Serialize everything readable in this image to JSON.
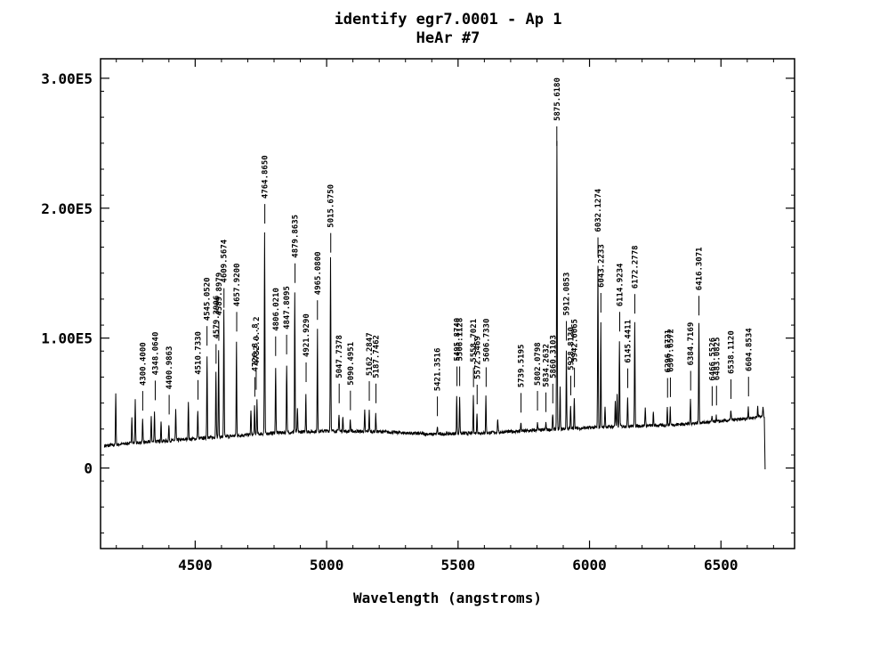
{
  "chart_data": {
    "type": "line",
    "title": "identify egr7.0001 - Ap 1",
    "subtitle": "HeAr #7",
    "xlabel": "Wavelength (angstroms)",
    "ylabel": "",
    "xlim": [
      4140,
      6780
    ],
    "ylim": [
      -62000,
      315000
    ],
    "x_ticks": [
      4500,
      5000,
      5500,
      6000,
      6500
    ],
    "x_tick_labels": [
      "4500",
      "5000",
      "5500",
      "6000",
      "6500"
    ],
    "y_ticks": [
      0,
      100000,
      200000,
      300000
    ],
    "y_tick_labels": [
      "0",
      "1.00E5",
      "2.00E5",
      "3.00E5"
    ],
    "grid": false,
    "baseline": [
      [
        4155,
        17000
      ],
      [
        4250,
        19000
      ],
      [
        4400,
        21000
      ],
      [
        4600,
        24000
      ],
      [
        4800,
        27000
      ],
      [
        5000,
        28500
      ],
      [
        5200,
        28000
      ],
      [
        5400,
        26000
      ],
      [
        5600,
        27000
      ],
      [
        5800,
        29000
      ],
      [
        6000,
        31000
      ],
      [
        6100,
        32000
      ],
      [
        6300,
        33000
      ],
      [
        6500,
        36000
      ],
      [
        6600,
        38000
      ],
      [
        6665,
        40000
      ]
    ],
    "peaks": [
      [
        4198,
        58000
      ],
      [
        4259,
        40000
      ],
      [
        4272,
        53000
      ],
      [
        4300,
        37000
      ],
      [
        4333,
        40000
      ],
      [
        4345,
        44000
      ],
      [
        4370,
        37000
      ],
      [
        4400,
        33000
      ],
      [
        4426,
        45000
      ],
      [
        4474,
        52000
      ],
      [
        4510,
        45000
      ],
      [
        4545,
        86000
      ],
      [
        4579,
        75000
      ],
      [
        4589,
        90000
      ],
      [
        4609,
        122000
      ],
      [
        4657,
        97000
      ],
      [
        4712,
        45000
      ],
      [
        4726,
        47000
      ],
      [
        4735,
        52000
      ],
      [
        4764,
        181000
      ],
      [
        4806,
        78000
      ],
      [
        4848,
        80000
      ],
      [
        4879,
        135000
      ],
      [
        4889,
        45000
      ],
      [
        4921,
        58000
      ],
      [
        4965,
        106000
      ],
      [
        5015,
        163000
      ],
      [
        5047,
        42000
      ],
      [
        5062,
        40000
      ],
      [
        5090,
        37000
      ],
      [
        5145,
        44000
      ],
      [
        5162,
        44000
      ],
      [
        5187,
        42000
      ],
      [
        5421,
        32000
      ],
      [
        5495,
        55000
      ],
      [
        5506,
        55000
      ],
      [
        5558,
        55000
      ],
      [
        5572,
        42000
      ],
      [
        5606,
        55000
      ],
      [
        5651,
        38000
      ],
      [
        5739,
        35000
      ],
      [
        5802,
        36000
      ],
      [
        5834,
        35000
      ],
      [
        5860,
        42000
      ],
      [
        5876,
        252000
      ],
      [
        5888,
        62000
      ],
      [
        5912,
        90000
      ],
      [
        5928,
        48000
      ],
      [
        5942,
        55000
      ],
      [
        6032,
        155000
      ],
      [
        6043,
        113000
      ],
      [
        6059,
        48000
      ],
      [
        6098,
        52000
      ],
      [
        6105,
        57000
      ],
      [
        6114,
        97000
      ],
      [
        6145,
        55000
      ],
      [
        6172,
        113000
      ],
      [
        6212,
        47000
      ],
      [
        6243,
        43000
      ],
      [
        6296,
        46000
      ],
      [
        6307,
        47000
      ],
      [
        6384,
        52000
      ],
      [
        6416,
        112000
      ],
      [
        6466,
        40000
      ],
      [
        6482,
        40000
      ],
      [
        6538,
        45000
      ],
      [
        6604,
        47000
      ],
      [
        6640,
        48000
      ],
      [
        6660,
        48000
      ]
    ],
    "lines": [
      {
        "wavelength": 4300.4,
        "label": "4300.4000"
      },
      {
        "wavelength": 4348.064,
        "label": "4348.0640"
      },
      {
        "wavelength": 4400.9863,
        "label": "4400.9863"
      },
      {
        "wavelength": 4510.733,
        "label": "4510.7330"
      },
      {
        "wavelength": 4545.052,
        "label": "4545.0520"
      },
      {
        "wavelength": 4579.3906,
        "label": "4579.3906"
      },
      {
        "wavelength": 4589.8979,
        "label": "4589.8979"
      },
      {
        "wavelength": 4609.5674,
        "label": "4609.5674"
      },
      {
        "wavelength": 4657.92,
        "label": "4657.9200"
      },
      {
        "wavelength": 4726.8,
        "label": "4726.8...8"
      },
      {
        "wavelength": 4732.0,
        "label": "4732.0...2"
      },
      {
        "wavelength": 4764.865,
        "label": "4764.8650"
      },
      {
        "wavelength": 4806.021,
        "label": "4806.0210"
      },
      {
        "wavelength": 4847.8095,
        "label": "4847.8095"
      },
      {
        "wavelength": 4879.8635,
        "label": "4879.8635"
      },
      {
        "wavelength": 4921.929,
        "label": "4921.9290"
      },
      {
        "wavelength": 4965.08,
        "label": "4965.0800"
      },
      {
        "wavelength": 5015.675,
        "label": "5015.6750"
      },
      {
        "wavelength": 5047.7378,
        "label": "5047.7378"
      },
      {
        "wavelength": 5090.4951,
        "label": "5090.4951"
      },
      {
        "wavelength": 5162.2847,
        "label": "5162.2847"
      },
      {
        "wavelength": 5187.7462,
        "label": "5187.7462"
      },
      {
        "wavelength": 5421.3516,
        "label": "5421.3516"
      },
      {
        "wavelength": 5495.874,
        "label": "5495.8740"
      },
      {
        "wavelength": 5506.1128,
        "label": "5506.1128"
      },
      {
        "wavelength": 5558.7021,
        "label": "5558.7021"
      },
      {
        "wavelength": 5572.5469,
        "label": "5572.5469"
      },
      {
        "wavelength": 5606.733,
        "label": "5606.7330"
      },
      {
        "wavelength": 5739.5195,
        "label": "5739.5195"
      },
      {
        "wavelength": 5802.0798,
        "label": "5802.0798"
      },
      {
        "wavelength": 5834.2632,
        "label": "5834.2632"
      },
      {
        "wavelength": 5860.3103,
        "label": "5860.3103"
      },
      {
        "wavelength": 5875.618,
        "label": "5875.6180"
      },
      {
        "wavelength": 5912.0853,
        "label": "5912.0853"
      },
      {
        "wavelength": 5928.813,
        "label": "5928.8130"
      },
      {
        "wavelength": 5942.6665,
        "label": "5942.6665"
      },
      {
        "wavelength": 6032.1274,
        "label": "6032.1274"
      },
      {
        "wavelength": 6043.2233,
        "label": "6043.2233"
      },
      {
        "wavelength": 6114.9234,
        "label": "6114.9234"
      },
      {
        "wavelength": 6145.4411,
        "label": "6145.4411"
      },
      {
        "wavelength": 6172.2778,
        "label": "6172.2778"
      },
      {
        "wavelength": 6296.8721,
        "label": "6296.8721"
      },
      {
        "wavelength": 6307.6572,
        "label": "6307.6572"
      },
      {
        "wavelength": 6384.7169,
        "label": "6384.7169"
      },
      {
        "wavelength": 6416.3071,
        "label": "6416.3071"
      },
      {
        "wavelength": 6466.5526,
        "label": "6466.5526"
      },
      {
        "wavelength": 6483.0825,
        "label": "6483.0825"
      },
      {
        "wavelength": 6538.112,
        "label": "6538.1120"
      },
      {
        "wavelength": 6604.8534,
        "label": "6604.8534"
      }
    ]
  }
}
